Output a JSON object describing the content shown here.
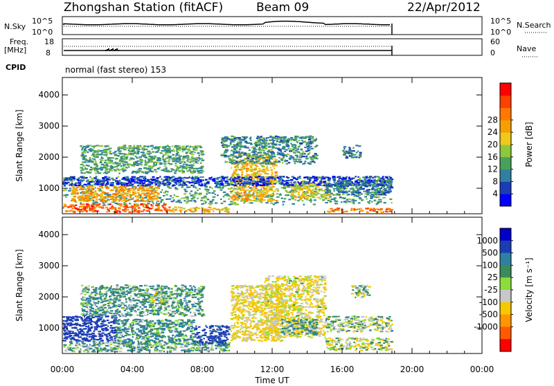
{
  "header": {
    "station": "Zhongshan Station (fitACF)",
    "beam": "Beam 09",
    "date": "22/Apr/2012"
  },
  "mini_panels": {
    "nsky_label": "N.Sky",
    "nsky_ticks": [
      "10^5",
      "10^0"
    ],
    "nsearch_label": "N.Search",
    "nsearch_ticks": [
      "10^5",
      "10^0"
    ],
    "freq_label": "Freq.",
    "freq_unit": "[MHz]",
    "freq_ticks": [
      "18",
      "8"
    ],
    "nave_label": "Nave",
    "nave_ticks": [
      "60",
      "0"
    ],
    "cpid_label": "CPID",
    "cpid_text": "normal (fast stereo) 153"
  },
  "chart_data": [
    {
      "type": "heatmap",
      "name": "power-panel",
      "ylabel": "Slant Range [km]",
      "xlabel": "",
      "x_ticks": [
        "00:00",
        "04:00",
        "08:00",
        "12:00",
        "16:00",
        "20:00",
        "00:00"
      ],
      "x_hours": [
        0,
        4,
        8,
        12,
        16,
        20,
        24
      ],
      "xlim": [
        0,
        24
      ],
      "y_ticks": [
        1000,
        2000,
        3000,
        4000
      ],
      "ylim": [
        180,
        4560
      ],
      "data_end_hour": 18.85,
      "colorbar": {
        "label": "Power [dB]",
        "ticks": [
          "4",
          "8",
          "12",
          "16",
          "20",
          "24",
          "28"
        ],
        "colors": [
          "#0000ff",
          "#1c3cb4",
          "#2f80a0",
          "#4aa05a",
          "#8cc83c",
          "#f0c81e",
          "#f5a000",
          "#ff7800",
          "#ff4000",
          "#ff0000"
        ]
      },
      "regions": [
        {
          "x": [
            0.0,
            6.0
          ],
          "y": [
            250,
            520
          ],
          "value": 26
        },
        {
          "x": [
            6.0,
            9.5
          ],
          "y": [
            250,
            420
          ],
          "value": 20
        },
        {
          "x": [
            15.0,
            18.8
          ],
          "y": [
            250,
            380
          ],
          "value": 25
        },
        {
          "x": [
            0.0,
            18.8
          ],
          "y": [
            500,
            1400
          ],
          "value": 12
        },
        {
          "x": [
            0.5,
            5.5
          ],
          "y": [
            600,
            1100
          ],
          "value": 22
        },
        {
          "x": [
            9.6,
            12.2
          ],
          "y": [
            600,
            2100
          ],
          "value": 20
        },
        {
          "x": [
            13.0,
            15.2
          ],
          "y": [
            700,
            1200
          ],
          "value": 18
        },
        {
          "x": [
            0.0,
            18.8
          ],
          "y": [
            1100,
            1400
          ],
          "value": 6
        },
        {
          "x": [
            1.0,
            8.0
          ],
          "y": [
            1500,
            2400
          ],
          "value": 12
        },
        {
          "x": [
            9.0,
            14.5
          ],
          "y": [
            1800,
            2700
          ],
          "value": 11
        },
        {
          "x": [
            15.0,
            18.8
          ],
          "y": [
            800,
            1300
          ],
          "value": 9
        },
        {
          "x": [
            16.0,
            17.0
          ],
          "y": [
            2000,
            2400
          ],
          "value": 10
        }
      ]
    },
    {
      "type": "heatmap",
      "name": "velocity-panel",
      "ylabel": "Slant Range [km]",
      "xlabel": "Time UT",
      "x_ticks": [
        "00:00",
        "04:00",
        "08:00",
        "12:00",
        "16:00",
        "20:00",
        "00:00"
      ],
      "x_hours": [
        0,
        4,
        8,
        12,
        16,
        20,
        24
      ],
      "xlim": [
        0,
        24
      ],
      "y_ticks": [
        1000,
        2000,
        3000,
        4000
      ],
      "ylim": [
        180,
        4560
      ],
      "data_end_hour": 18.85,
      "colorbar": {
        "label": "Velocity [m s⁻¹]",
        "ticks": [
          "1000",
          "500",
          "100",
          "25",
          "-25",
          "-100",
          "-500",
          "-1000"
        ],
        "colors": [
          "#0000c8",
          "#1c3cb4",
          "#2f80a0",
          "#3a8c5a",
          "#8cdc3c",
          "#c8c8c8",
          "#f5c800",
          "#ff9600",
          "#ff5a00",
          "#ff0000"
        ]
      },
      "regions": [
        {
          "x": [
            0.0,
            3.0
          ],
          "y": [
            600,
            1400
          ],
          "value": 700
        },
        {
          "x": [
            0.0,
            9.5
          ],
          "y": [
            250,
            600
          ],
          "value": 60
        },
        {
          "x": [
            3.0,
            7.5
          ],
          "y": [
            500,
            1300
          ],
          "value": 120
        },
        {
          "x": [
            7.5,
            9.5
          ],
          "y": [
            500,
            1100
          ],
          "value": 600
        },
        {
          "x": [
            1.0,
            8.0
          ],
          "y": [
            1400,
            2400
          ],
          "value": 90
        },
        {
          "x": [
            5.0,
            6.0
          ],
          "y": [
            1800,
            2200
          ],
          "value": 0
        },
        {
          "x": [
            9.6,
            12.5
          ],
          "y": [
            600,
            2400
          ],
          "value": -150
        },
        {
          "x": [
            11.5,
            15.0
          ],
          "y": [
            700,
            2700
          ],
          "value": -120
        },
        {
          "x": [
            12.5,
            14.5
          ],
          "y": [
            800,
            1300
          ],
          "value": 80
        },
        {
          "x": [
            15.0,
            18.8
          ],
          "y": [
            300,
            700
          ],
          "value": -60
        },
        {
          "x": [
            15.0,
            18.8
          ],
          "y": [
            900,
            1400
          ],
          "value": 0
        },
        {
          "x": [
            16.5,
            17.5
          ],
          "y": [
            2000,
            2400
          ],
          "value": 0
        }
      ]
    }
  ]
}
